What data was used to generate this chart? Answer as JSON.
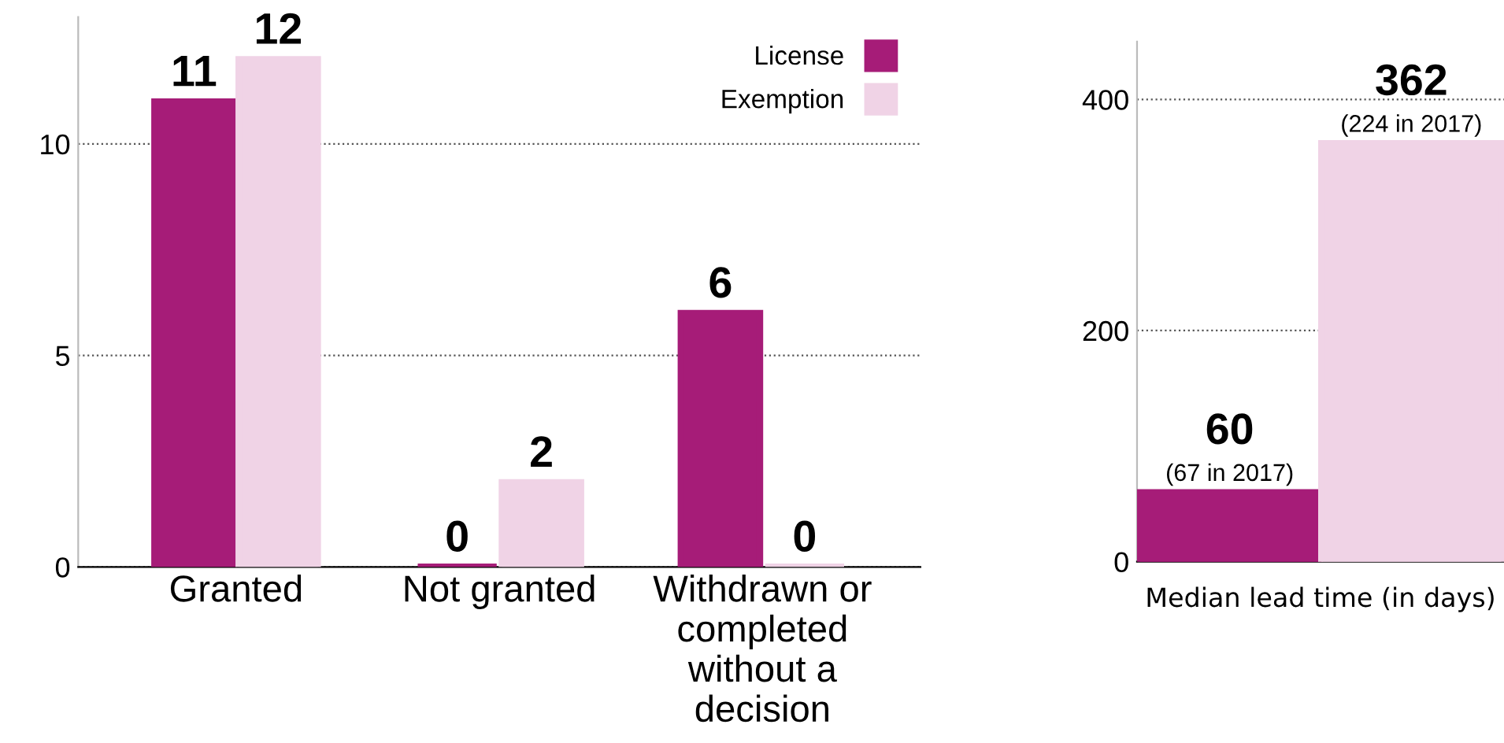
{
  "chart_data": [
    {
      "type": "bar",
      "categories": [
        "Granted",
        "Not granted",
        "Withdrawn or completed without a decision"
      ],
      "series": [
        {
          "name": "License",
          "color": "#a61c78",
          "values": [
            11,
            0,
            6
          ]
        },
        {
          "name": "Exemption",
          "color": "#f0d3e6",
          "values": [
            12,
            2,
            0
          ]
        }
      ],
      "ylim": [
        0,
        13
      ],
      "yticks": [
        0,
        5,
        10
      ],
      "grid": "y",
      "legend": "top right",
      "data_labels": true
    },
    {
      "type": "bar",
      "categories": [
        null
      ],
      "xlabel": "Median lead time (in days)",
      "series": [
        {
          "color": "#a61c78",
          "values": [
            60
          ]
        },
        {
          "color": "#f0d3e6",
          "values": [
            362
          ]
        }
      ],
      "ylim": [
        0,
        450
      ],
      "yticks": [
        0,
        200,
        400
      ],
      "grid": "y",
      "data_labels": true,
      "annotations": [
        "(67 in 2017)",
        "(224 in 2017)"
      ]
    }
  ]
}
